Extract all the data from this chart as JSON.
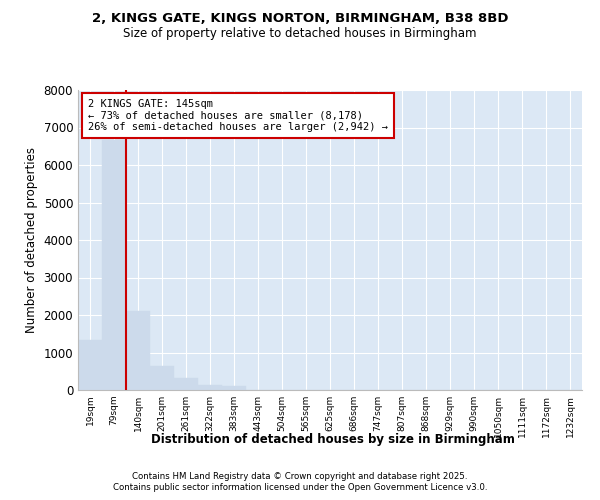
{
  "title1": "2, KINGS GATE, KINGS NORTON, BIRMINGHAM, B38 8BD",
  "title2": "Size of property relative to detached houses in Birmingham",
  "xlabel": "Distribution of detached houses by size in Birmingham",
  "ylabel": "Number of detached properties",
  "bar_color": "#ccdaeb",
  "bar_edge_color": "#ccdaeb",
  "bin_labels": [
    "19sqm",
    "79sqm",
    "140sqm",
    "201sqm",
    "261sqm",
    "322sqm",
    "383sqm",
    "443sqm",
    "504sqm",
    "565sqm",
    "625sqm",
    "686sqm",
    "747sqm",
    "807sqm",
    "868sqm",
    "929sqm",
    "990sqm",
    "1050sqm",
    "1111sqm",
    "1172sqm",
    "1232sqm"
  ],
  "bar_values": [
    1340,
    6680,
    2100,
    640,
    310,
    130,
    100,
    0,
    0,
    0,
    0,
    0,
    0,
    0,
    0,
    0,
    0,
    0,
    0,
    0,
    0
  ],
  "property_bin_index": 2,
  "annotation_title": "2 KINGS GATE: 145sqm",
  "annotation_line1": "← 73% of detached houses are smaller (8,178)",
  "annotation_line2": "26% of semi-detached houses are larger (2,942) →",
  "red_line_color": "#cc0000",
  "annotation_box_color": "#ffffff",
  "annotation_box_edge": "#cc0000",
  "ylim": [
    0,
    8000
  ],
  "yticks": [
    0,
    1000,
    2000,
    3000,
    4000,
    5000,
    6000,
    7000,
    8000
  ],
  "bg_color": "#dce8f5",
  "fig_bg_color": "#ffffff",
  "footer_line1": "Contains HM Land Registry data © Crown copyright and database right 2025.",
  "footer_line2": "Contains public sector information licensed under the Open Government Licence v3.0."
}
